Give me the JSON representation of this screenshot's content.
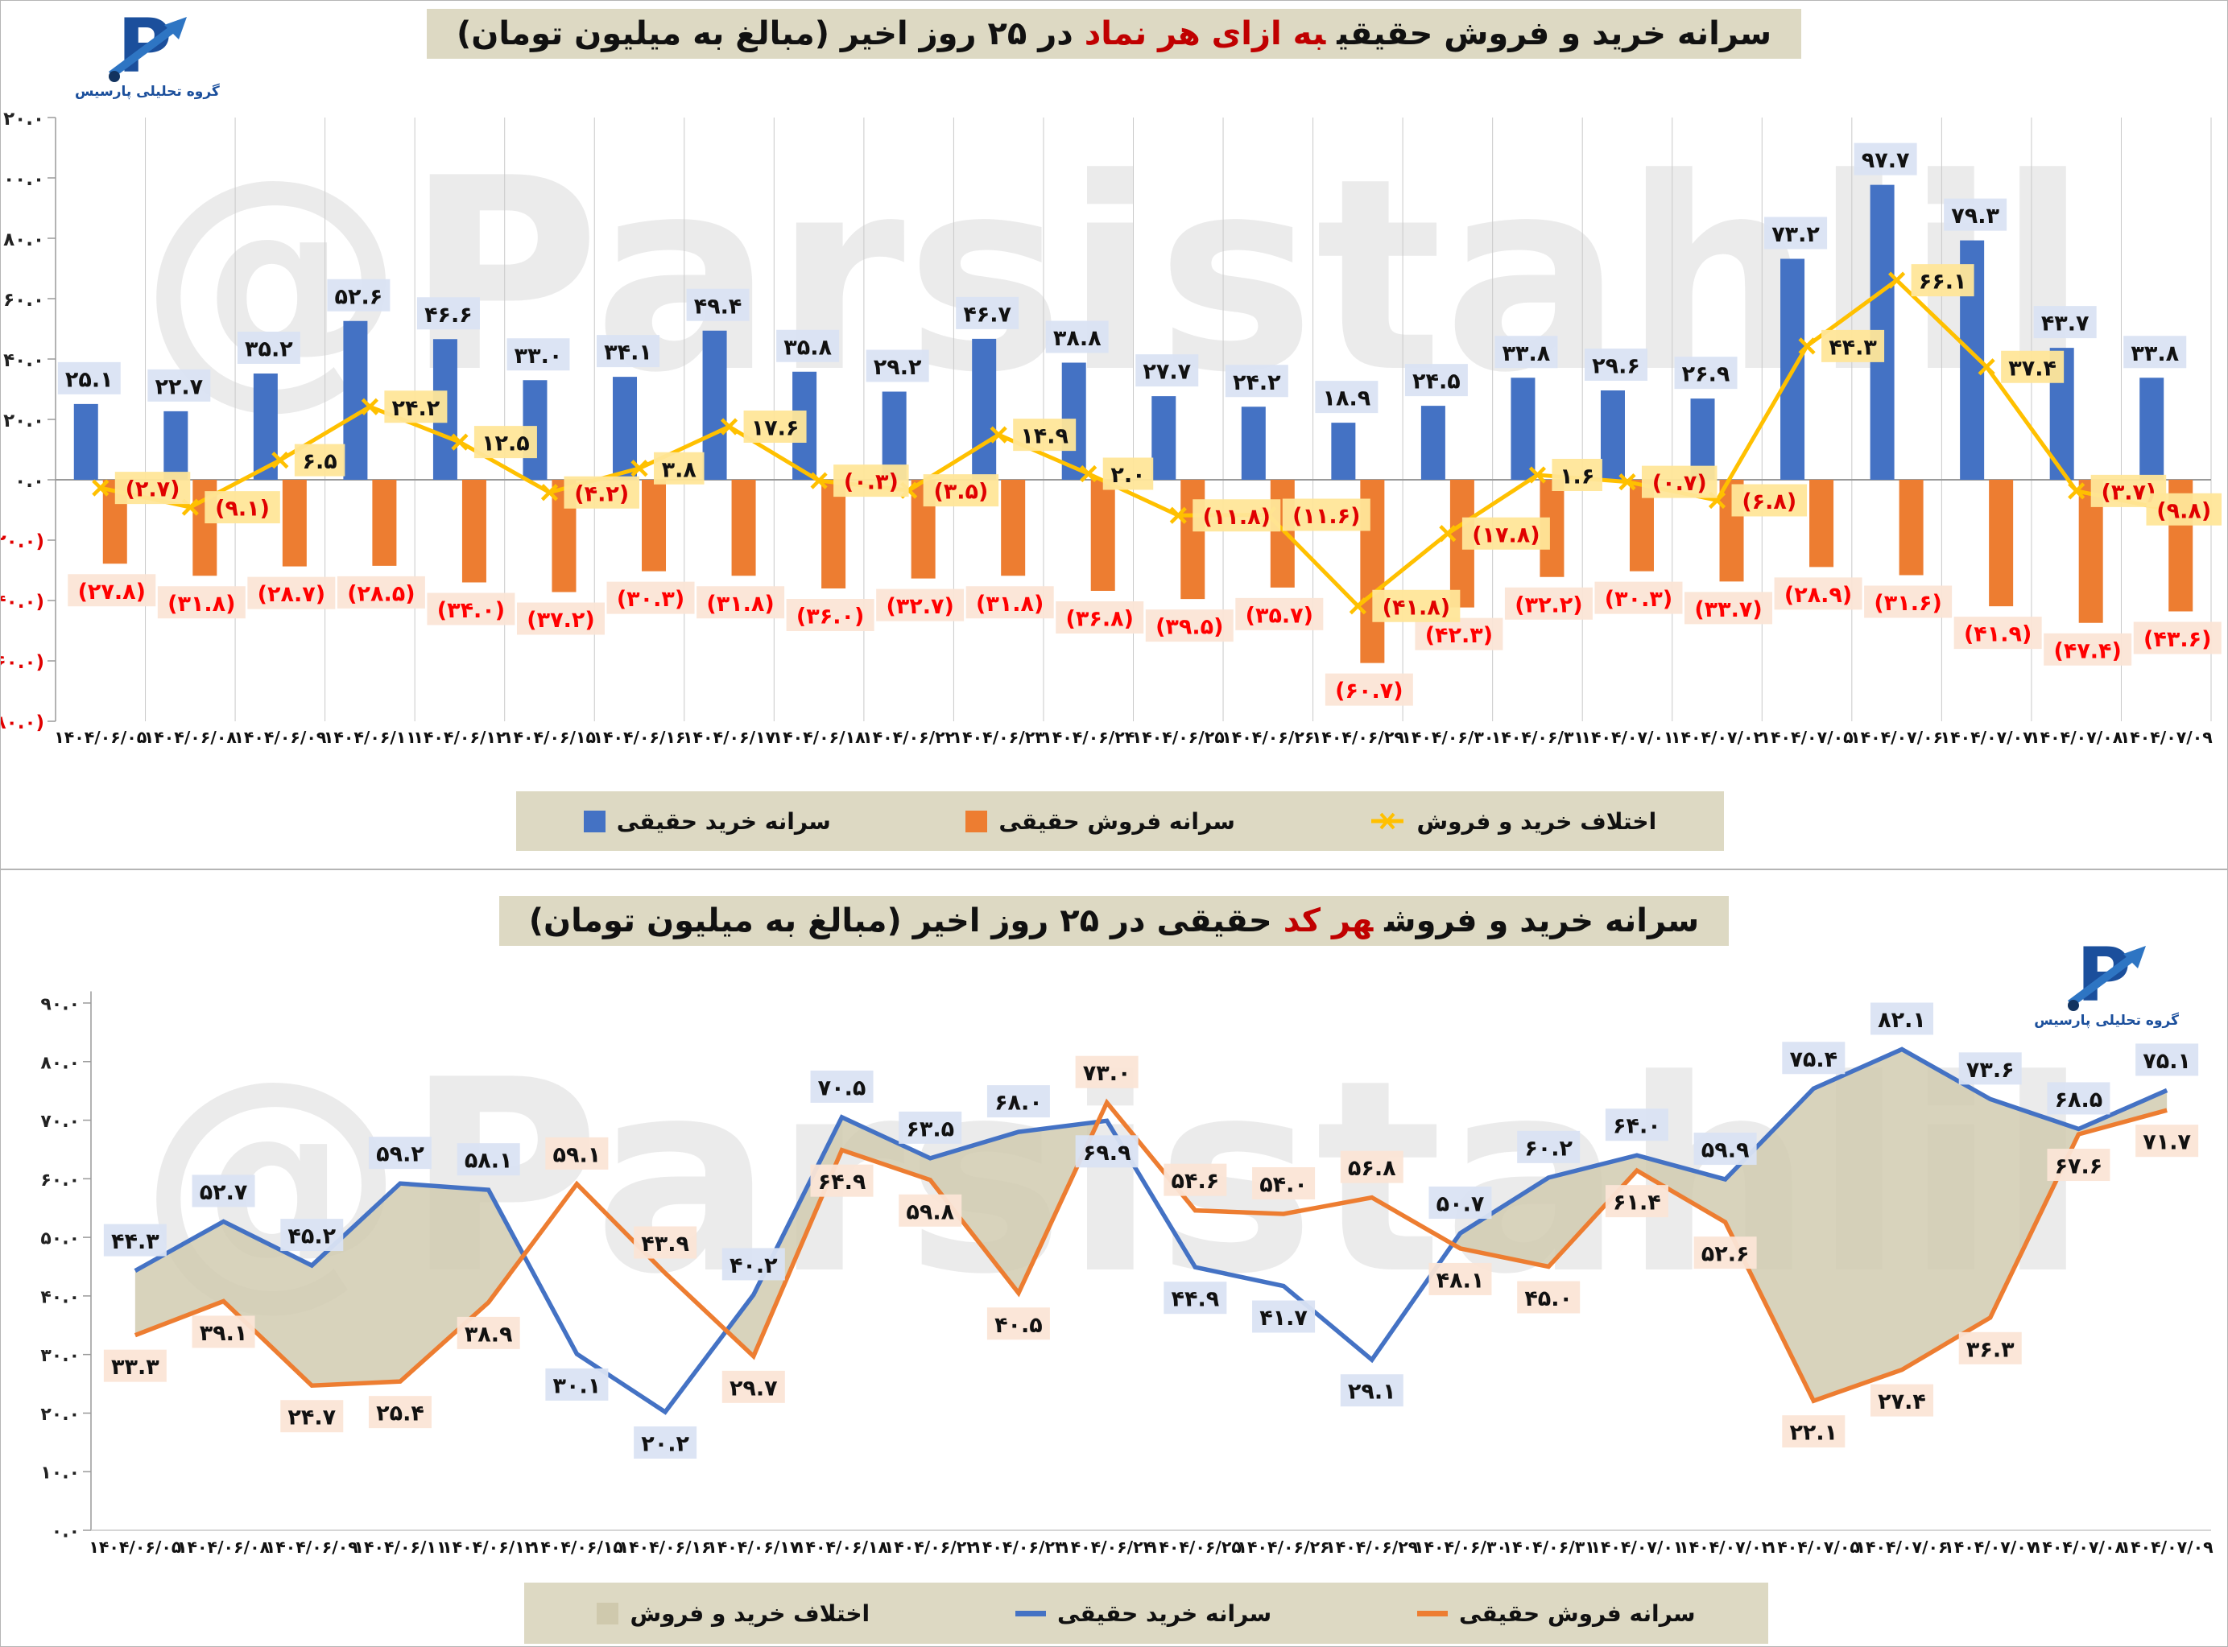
{
  "watermark": "@Parsistahlil",
  "brand": {
    "caption": "گروه تحلیلی پارسیس",
    "color": "#1b4f9c",
    "arrow_color": "#2e75c3"
  },
  "colors": {
    "buy": "#4472C4",
    "sell": "#ED7D31",
    "diff_line": "#FFC000",
    "area": "#cfc9ad",
    "buy_label_bg": "#dae3f3",
    "sell_label_bg": "#fbe5d6",
    "diff_label_bg": "#ffe699",
    "negative_red": "#e00000",
    "chrome_bg": "#ddd9c3",
    "grid": "#c9c9c9",
    "axis": "#9a9a9a"
  },
  "top_chart": {
    "title": {
      "black1": "سرانه خرید و فروش حقیقی",
      "red": "به ازای هر نماد",
      "black2": "در ۲۵ روز اخیر (مبالغ به میلیون تومان)"
    },
    "legend": [
      {
        "label": "سرانه خرید حقیقی",
        "swatch": "square",
        "color": "#4472C4"
      },
      {
        "label": "سرانه فروش حقیقی",
        "swatch": "square",
        "color": "#ED7D31"
      },
      {
        "label": "اختلاف خرید و فروش",
        "swatch": "xline",
        "color": "#FFC000"
      }
    ]
  },
  "bottom_chart": {
    "title": {
      "black1": "سرانه خرید و فروش",
      "red": "هر کد",
      "black2": "حقیقی در ۲۵ روز اخیر (مبالغ به میلیون تومان)"
    },
    "legend": [
      {
        "label": "اختلاف خرید و فروش",
        "swatch": "area",
        "color": "#cfc9ad"
      },
      {
        "label": "سرانه خرید حقیقی",
        "swatch": "line",
        "color": "#4472C4"
      },
      {
        "label": "سرانه فروش حقیقی",
        "swatch": "line",
        "color": "#ED7D31"
      }
    ]
  },
  "chart_data": [
    {
      "type": "bar",
      "title": "سرانه خرید و فروش حقیقی به ازای هر نماد در ۲۵ روز اخیر (مبالغ به میلیون تومان)",
      "categories": [
        "۱۴۰۴/۰۶/۰۵",
        "۱۴۰۴/۰۶/۰۸",
        "۱۴۰۴/۰۶/۰۹",
        "۱۴۰۴/۰۶/۱۱",
        "۱۴۰۴/۰۶/۱۲",
        "۱۴۰۴/۰۶/۱۵",
        "۱۴۰۴/۰۶/۱۶",
        "۱۴۰۴/۰۶/۱۷",
        "۱۴۰۴/۰۶/۱۸",
        "۱۴۰۴/۰۶/۲۲",
        "۱۴۰۴/۰۶/۲۳",
        "۱۴۰۴/۰۶/۲۴",
        "۱۴۰۴/۰۶/۲۵",
        "۱۴۰۴/۰۶/۲۶",
        "۱۴۰۴/۰۶/۲۹",
        "۱۴۰۴/۰۶/۳۰",
        "۱۴۰۴/۰۶/۳۱",
        "۱۴۰۴/۰۷/۰۱",
        "۱۴۰۴/۰۷/۰۲",
        "۱۴۰۴/۰۷/۰۵",
        "۱۴۰۴/۰۷/۰۶",
        "۱۴۰۴/۰۷/۰۷",
        "۱۴۰۴/۰۷/۰۸",
        "۱۴۰۴/۰۷/۰۹"
      ],
      "series": [
        {
          "name": "سرانه خرید حقیقی",
          "type": "bar",
          "color": "#4472C4",
          "values": [
            25.1,
            22.7,
            35.2,
            52.6,
            46.6,
            33.0,
            34.1,
            49.4,
            35.8,
            29.2,
            46.7,
            38.8,
            27.7,
            24.2,
            18.9,
            24.5,
            33.8,
            29.6,
            26.9,
            73.2,
            97.7,
            79.3,
            43.7,
            33.8
          ]
        },
        {
          "name": "سرانه فروش حقیقی",
          "type": "bar",
          "color": "#ED7D31",
          "values": [
            -27.8,
            -31.8,
            -28.7,
            -28.5,
            -34.0,
            -37.2,
            -30.3,
            -31.8,
            -36.0,
            -32.7,
            -31.8,
            -36.8,
            -39.5,
            -35.7,
            -60.7,
            -42.3,
            -32.2,
            -30.3,
            -33.7,
            -28.9,
            -31.6,
            -41.9,
            -47.4,
            -43.6
          ]
        },
        {
          "name": "اختلاف خرید و فروش",
          "type": "line",
          "color": "#FFC000",
          "values": [
            -2.7,
            -9.1,
            6.5,
            24.2,
            12.5,
            -4.2,
            3.8,
            17.6,
            -0.3,
            -3.5,
            14.9,
            2.0,
            -11.8,
            -11.6,
            -41.8,
            -17.8,
            1.6,
            -0.7,
            -6.8,
            44.3,
            66.1,
            37.4,
            -3.7,
            -9.8
          ]
        }
      ],
      "ylim": [
        -80,
        120
      ],
      "y_ticks": [
        120,
        100,
        80,
        60,
        40,
        20,
        0,
        -20,
        -40,
        -60,
        -80
      ],
      "grid": "vertical",
      "legend_position": "bottom"
    },
    {
      "type": "line",
      "title": "سرانه خرید و فروش هر کد حقیقی در ۲۵ روز اخیر (مبالغ به میلیون تومان)",
      "categories": [
        "۱۴۰۴/۰۶/۰۵",
        "۱۴۰۴/۰۶/۰۸",
        "۱۴۰۴/۰۶/۰۹",
        "۱۴۰۴/۰۶/۱۱",
        "۱۴۰۴/۰۶/۱۲",
        "۱۴۰۴/۰۶/۱۵",
        "۱۴۰۴/۰۶/۱۶",
        "۱۴۰۴/۰۶/۱۷",
        "۱۴۰۴/۰۶/۱۸",
        "۱۴۰۴/۰۶/۲۲",
        "۱۴۰۴/۰۶/۲۳",
        "۱۴۰۴/۰۶/۲۴",
        "۱۴۰۴/۰۶/۲۵",
        "۱۴۰۴/۰۶/۲۶",
        "۱۴۰۴/۰۶/۲۹",
        "۱۴۰۴/۰۶/۳۰",
        "۱۴۰۴/۰۶/۳۱",
        "۱۴۰۴/۰۷/۰۱",
        "۱۴۰۴/۰۷/۰۲",
        "۱۴۰۴/۰۷/۰۵",
        "۱۴۰۴/۰۷/۰۶",
        "۱۴۰۴/۰۷/۰۷",
        "۱۴۰۴/۰۷/۰۸",
        "۱۴۰۴/۰۷/۰۹"
      ],
      "series": [
        {
          "name": "سرانه خرید حقیقی",
          "type": "line",
          "color": "#4472C4",
          "values": [
            44.3,
            52.7,
            45.2,
            59.2,
            58.1,
            30.1,
            20.2,
            40.2,
            70.5,
            63.5,
            68.0,
            69.9,
            44.9,
            41.7,
            29.1,
            50.7,
            60.2,
            64.0,
            59.9,
            75.4,
            82.1,
            73.6,
            68.5,
            75.1
          ]
        },
        {
          "name": "سرانه فروش حقیقی",
          "type": "line",
          "color": "#ED7D31",
          "values": [
            33.3,
            39.1,
            24.7,
            25.4,
            38.9,
            59.1,
            43.9,
            29.7,
            64.9,
            59.8,
            40.5,
            73.0,
            54.6,
            54.0,
            56.8,
            48.1,
            45.0,
            61.4,
            52.6,
            22.1,
            27.4,
            36.3,
            67.6,
            71.7
          ]
        },
        {
          "name": "اختلاف خرید و فروش",
          "type": "area-between",
          "color": "#cfc9ad",
          "note": "filled only where buy > sell"
        }
      ],
      "ylim": [
        0,
        90
      ],
      "y_ticks": [
        90,
        80,
        70,
        60,
        50,
        40,
        30,
        20,
        10,
        0
      ],
      "grid": "none",
      "legend_position": "bottom"
    }
  ]
}
